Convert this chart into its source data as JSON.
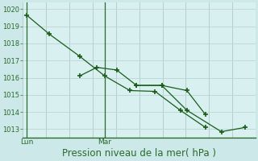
{
  "xlabel": "Pression niveau de la mer( hPa )",
  "background_color": "#cce8e8",
  "plot_bg_color": "#d8f0f0",
  "line_color": "#1a5c1a",
  "grid_color_h": "#c0d8d8",
  "grid_color_v": "#b8cccc",
  "tick_label_color": "#2a6a2a",
  "ylim": [
    1012.5,
    1020.4
  ],
  "yticks": [
    1013,
    1014,
    1015,
    1016,
    1017,
    1018,
    1019,
    1020
  ],
  "xlim": [
    0,
    8.8
  ],
  "lun_x": 0.15,
  "mar_x": 3.1,
  "day_labels": [
    "Lun",
    "Mar"
  ],
  "series1_x": [
    0.15,
    1.0,
    2.15,
    3.1,
    4.05,
    5.0,
    5.95,
    6.9
  ],
  "series1_y": [
    1019.65,
    1018.55,
    1017.25,
    1016.1,
    1015.25,
    1015.2,
    1014.1,
    1013.1
  ],
  "series2_x": [
    2.15,
    2.8,
    3.55,
    4.3,
    5.25,
    6.2,
    6.9
  ],
  "series2_y": [
    1016.1,
    1016.6,
    1016.45,
    1015.55,
    1015.55,
    1015.25,
    1013.85
  ],
  "series3_x": [
    4.3,
    5.25,
    6.2,
    7.5,
    8.4
  ],
  "series3_y": [
    1015.55,
    1015.55,
    1014.1,
    1012.85,
    1013.1
  ],
  "vlines_x": [
    0.15,
    3.1
  ],
  "vlines_num": 10,
  "xlabel_fontsize": 8.5
}
